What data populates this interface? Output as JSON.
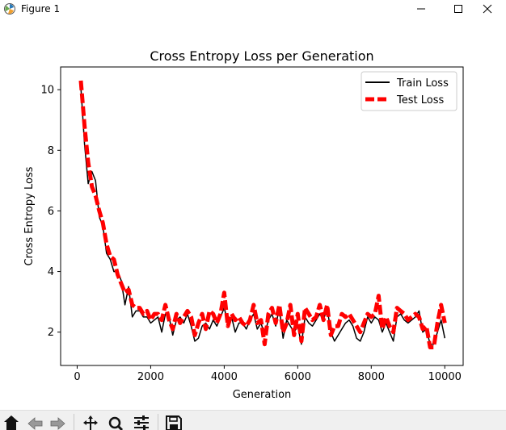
{
  "window": {
    "title": "Figure 1"
  },
  "toolbar": {
    "buttons": [
      "home-icon",
      "back-arrow-icon",
      "forward-arrow-icon",
      "pan-icon",
      "zoom-icon",
      "configure-subplots-icon",
      "save-icon"
    ]
  },
  "chart_data": {
    "type": "line",
    "title": "Cross Entropy Loss per Generation",
    "xlabel": "Generation",
    "ylabel": "Cross Entropy Loss",
    "xlim": [
      -450,
      10500
    ],
    "ylim": [
      0.9,
      10.75
    ],
    "xticks": [
      0,
      2000,
      4000,
      6000,
      8000,
      10000
    ],
    "yticks": [
      2,
      4,
      6,
      8,
      10
    ],
    "legend_position": "top-right",
    "grid": false,
    "series": [
      {
        "name": "Train Loss",
        "color": "#000000",
        "style": "solid",
        "x": [
          100,
          200,
          300,
          400,
          500,
          600,
          700,
          800,
          900,
          1000,
          1100,
          1200,
          1300,
          1400,
          1500,
          1600,
          1700,
          1800,
          1900,
          2000,
          2100,
          2200,
          2300,
          2400,
          2500,
          2600,
          2700,
          2800,
          2900,
          3000,
          3100,
          3200,
          3300,
          3400,
          3500,
          3600,
          3700,
          3800,
          3900,
          4000,
          4100,
          4200,
          4300,
          4400,
          4500,
          4600,
          4700,
          4800,
          4900,
          5000,
          5100,
          5200,
          5300,
          5400,
          5500,
          5600,
          5700,
          5800,
          5900,
          6000,
          6100,
          6200,
          6300,
          6400,
          6500,
          6600,
          6700,
          6800,
          6900,
          7000,
          7100,
          7200,
          7300,
          7400,
          7500,
          7600,
          7700,
          7800,
          7900,
          8000,
          8100,
          8200,
          8300,
          8400,
          8500,
          8600,
          8700,
          8800,
          8900,
          9000,
          9100,
          9200,
          9300,
          9400,
          9500,
          9600,
          9700,
          9800,
          9900,
          10000
        ],
        "y": [
          10.1,
          8.2,
          6.9,
          7.3,
          7.0,
          5.8,
          5.5,
          4.6,
          4.4,
          4.0,
          4.0,
          3.7,
          2.9,
          3.5,
          2.5,
          2.7,
          2.7,
          2.5,
          2.5,
          2.3,
          2.4,
          2.5,
          2.0,
          2.6,
          2.5,
          1.9,
          2.4,
          2.5,
          2.3,
          2.6,
          2.2,
          1.7,
          1.8,
          2.2,
          2.3,
          2.1,
          2.4,
          2.2,
          2.5,
          2.8,
          2.3,
          2.5,
          2.0,
          2.3,
          2.3,
          2.1,
          2.4,
          2.6,
          2.1,
          2.3,
          1.9,
          2.4,
          2.6,
          2.2,
          2.8,
          1.8,
          2.4,
          2.2,
          2.0,
          2.2,
          1.6,
          2.5,
          2.3,
          2.2,
          2.4,
          2.6,
          2.4,
          2.8,
          2.0,
          1.7,
          1.9,
          2.1,
          2.3,
          2.4,
          2.2,
          1.8,
          1.7,
          2.0,
          2.5,
          2.3,
          2.5,
          2.4,
          2.0,
          2.3,
          2.0,
          1.7,
          2.5,
          2.6,
          2.4,
          2.3,
          2.4,
          2.5,
          2.7,
          2.0,
          2.1,
          1.6,
          1.6,
          2.0,
          2.4,
          1.8
        ]
      },
      {
        "name": "Test Loss",
        "color": "#ff0000",
        "style": "dashed",
        "x": [
          100,
          200,
          300,
          400,
          500,
          600,
          700,
          800,
          900,
          1000,
          1100,
          1200,
          1300,
          1400,
          1500,
          1600,
          1700,
          1800,
          1900,
          2000,
          2100,
          2200,
          2300,
          2400,
          2500,
          2600,
          2700,
          2800,
          2900,
          3000,
          3100,
          3200,
          3300,
          3400,
          3500,
          3600,
          3700,
          3800,
          3900,
          4000,
          4100,
          4200,
          4300,
          4400,
          4500,
          4600,
          4700,
          4800,
          4900,
          5000,
          5100,
          5200,
          5300,
          5400,
          5500,
          5600,
          5700,
          5800,
          5900,
          6000,
          6100,
          6200,
          6300,
          6400,
          6500,
          6600,
          6700,
          6800,
          6900,
          7000,
          7100,
          7200,
          7300,
          7400,
          7500,
          7600,
          7700,
          7800,
          7900,
          8000,
          8100,
          8200,
          8300,
          8400,
          8500,
          8600,
          8700,
          8800,
          8900,
          9000,
          9100,
          9200,
          9300,
          9400,
          9500,
          9600,
          9700,
          9800,
          9900,
          10000
        ],
        "y": [
          10.3,
          8.8,
          7.6,
          6.8,
          6.5,
          6.0,
          5.6,
          4.9,
          4.5,
          4.4,
          3.9,
          3.6,
          3.3,
          3.4,
          2.9,
          2.8,
          2.8,
          2.6,
          2.7,
          2.4,
          2.6,
          2.6,
          2.4,
          2.9,
          2.4,
          2.1,
          2.6,
          2.3,
          2.5,
          2.7,
          2.5,
          1.9,
          2.3,
          2.6,
          2.1,
          2.7,
          2.6,
          2.3,
          2.6,
          3.3,
          2.2,
          2.6,
          2.4,
          2.5,
          2.3,
          2.2,
          2.4,
          2.9,
          2.3,
          2.4,
          1.6,
          2.6,
          2.8,
          2.3,
          2.9,
          2.0,
          2.3,
          2.9,
          1.9,
          2.6,
          1.7,
          2.8,
          2.6,
          2.4,
          2.5,
          2.9,
          2.4,
          2.9,
          1.9,
          2.2,
          2.2,
          2.6,
          2.5,
          2.6,
          2.4,
          2.2,
          2.0,
          2.3,
          2.6,
          2.5,
          2.6,
          3.2,
          2.1,
          2.5,
          2.2,
          2.0,
          2.8,
          2.7,
          2.6,
          2.4,
          2.5,
          2.6,
          2.5,
          2.1,
          2.2,
          1.5,
          1.5,
          2.3,
          2.9,
          2.3
        ]
      }
    ]
  }
}
